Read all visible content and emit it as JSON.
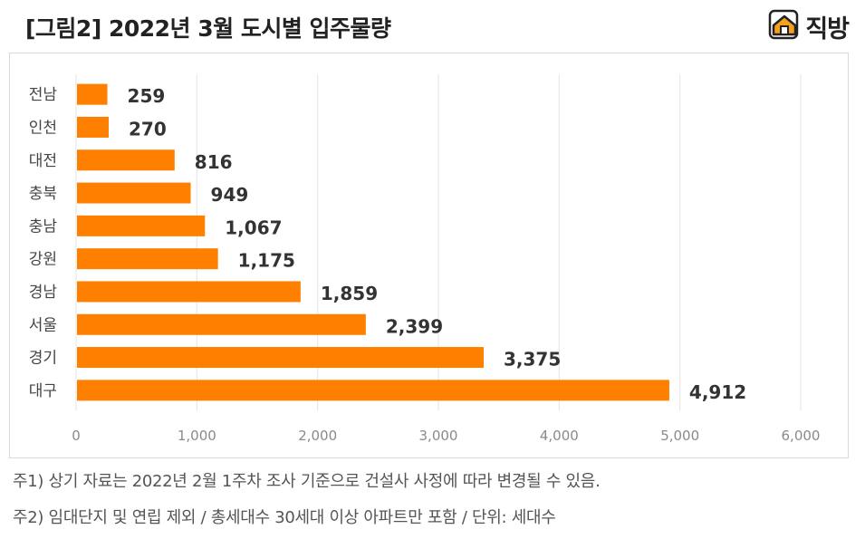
{
  "header": {
    "title": "[그림2] 2022년 3월 도시별 입주물량",
    "brand_name": "직방",
    "brand_icon": "house-logo-icon",
    "brand_color": "#f7a11a"
  },
  "chart_data": {
    "type": "bar",
    "orientation": "horizontal",
    "title": "[그림2] 2022년 3월 도시별 입주물량",
    "xlabel": "",
    "ylabel": "",
    "categories": [
      "전남",
      "인천",
      "대전",
      "충북",
      "충남",
      "강원",
      "경남",
      "서울",
      "경기",
      "대구"
    ],
    "values": [
      259,
      270,
      816,
      949,
      1067,
      1175,
      1859,
      2399,
      3375,
      4912
    ],
    "value_labels": [
      "259",
      "270",
      "816",
      "949",
      "1,067",
      "1,175",
      "1,859",
      "2,399",
      "3,375",
      "4,912"
    ],
    "xlim": [
      0,
      6000
    ],
    "x_ticks": [
      0,
      1000,
      2000,
      3000,
      4000,
      5000,
      6000
    ],
    "x_tick_labels": [
      "0",
      "1,000",
      "2,000",
      "3,000",
      "4,000",
      "5,000",
      "6,000"
    ],
    "grid": "vertical",
    "bar_color": "#ff8000",
    "legend": "none"
  },
  "footnotes": {
    "note1": "주1) 상기 자료는 2022년 2월 1주차 조사 기준으로 건설사 사정에 따라 변경될 수 있음.",
    "note2": "주2) 임대단지 및 연립 제외 / 총세대수 30세대 이상 아파트만 포함 / 단위: 세대수"
  }
}
